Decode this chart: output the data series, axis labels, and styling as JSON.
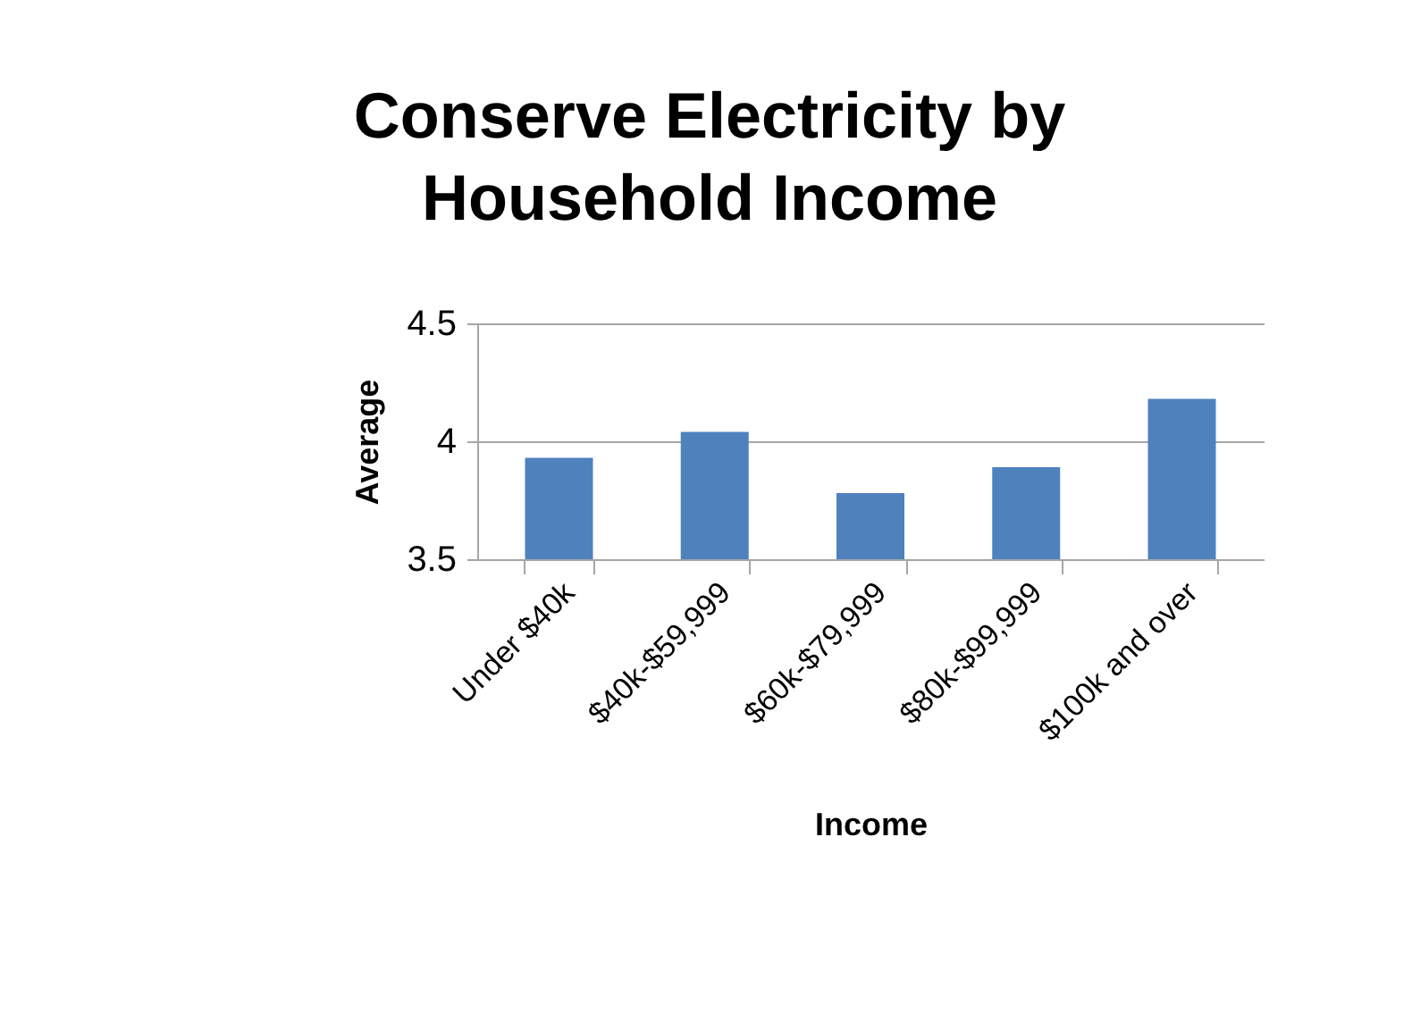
{
  "chart_data": {
    "type": "bar",
    "title": "Conserve Electricity by Household Income",
    "xlabel": "Income",
    "ylabel": "Average",
    "categories": [
      "Under $40k",
      "$40k-$59,999",
      "$60k-$79,999",
      "$80k-$99,999",
      "$100k and over"
    ],
    "values": [
      3.93,
      4.04,
      3.78,
      3.89,
      4.18
    ],
    "color": "#4f81bd",
    "ylim": [
      3.5,
      4.5
    ],
    "yticks": [
      3.5,
      4,
      4.5
    ],
    "grid": "y"
  }
}
